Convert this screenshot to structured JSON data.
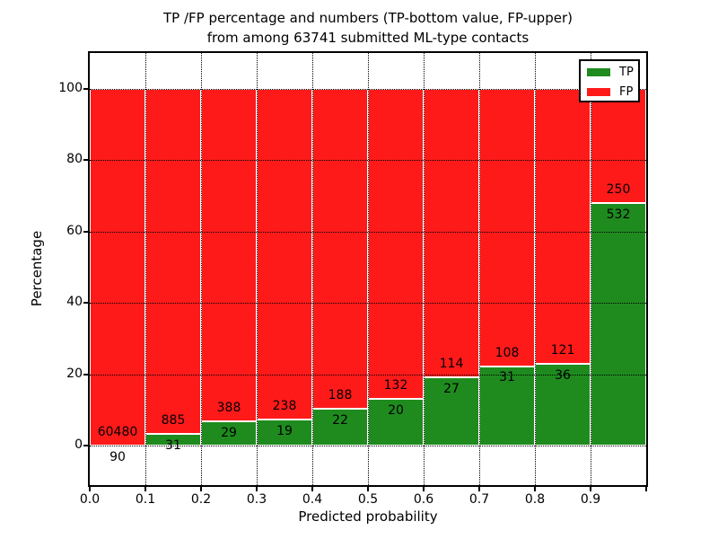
{
  "title": {
    "line1": "TP /FP percentage and numbers (TP-bottom value, FP-upper)",
    "line2": "from among 63741 submitted ML-type contacts"
  },
  "axes": {
    "xlabel": "Predicted probability",
    "ylabel": "Percentage"
  },
  "legend": {
    "items": [
      {
        "label": "TP",
        "color": "#1f8b1f"
      },
      {
        "label": "FP",
        "color": "#ff1a1a"
      }
    ]
  },
  "chart_data": {
    "type": "bar",
    "stacked": true,
    "normalized_to_percent": true,
    "title": "TP /FP percentage and numbers (TP-bottom value, FP-upper) from among 63741 submitted ML-type contacts",
    "xlabel": "Predicted probability",
    "ylabel": "Percentage",
    "total_submitted_contacts": 63741,
    "bin_width": 0.1,
    "categories": [
      "0.0-0.1",
      "0.1-0.2",
      "0.2-0.3",
      "0.3-0.4",
      "0.4-0.5",
      "0.5-0.6",
      "0.6-0.7",
      "0.7-0.8",
      "0.8-0.9",
      "0.9-1.0"
    ],
    "x_tick_labels": [
      "0.0",
      "0.1",
      "0.2",
      "0.3",
      "0.4",
      "0.5",
      "0.6",
      "0.7",
      "0.8",
      "0.9"
    ],
    "y_ticks": [
      0,
      20,
      40,
      60,
      80,
      100
    ],
    "xlim": [
      0.0,
      1.0
    ],
    "ylim": [
      -11,
      110
    ],
    "grid": {
      "visible": true,
      "style": "dotted",
      "color": "#000000",
      "above_bars": true
    },
    "legend_position": "upper right",
    "series": [
      {
        "name": "TP",
        "color": "#1f8b1f",
        "counts": [
          90,
          31,
          29,
          19,
          22,
          20,
          27,
          31,
          36,
          532
        ]
      },
      {
        "name": "FP",
        "color": "#ff1a1a",
        "counts": [
          60480,
          885,
          388,
          238,
          188,
          132,
          114,
          108,
          121,
          250
        ]
      }
    ],
    "tp_percent_of_bin": [
      0.15,
      3.38,
      6.95,
      7.39,
      10.48,
      13.16,
      19.15,
      22.3,
      22.93,
      68.03
    ],
    "fp_percent_of_bin": [
      99.85,
      96.62,
      93.05,
      92.61,
      89.52,
      86.84,
      80.85,
      77.7,
      77.07,
      31.97
    ]
  }
}
